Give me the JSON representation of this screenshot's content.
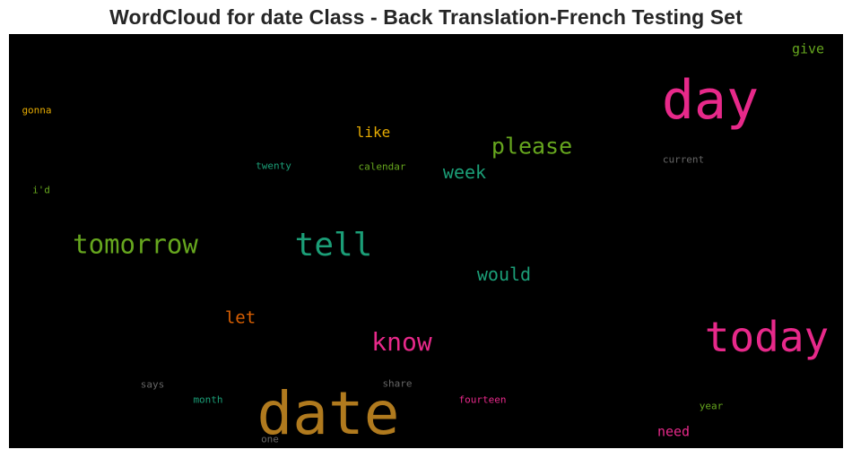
{
  "title": "WordCloud for date Class - Back Translation-French Testing Set",
  "chart_data": {
    "type": "wordcloud",
    "background": "#000000",
    "words": [
      {
        "text": "date",
        "color": "#b07a1e"
      },
      {
        "text": "day",
        "color": "#e7298a"
      },
      {
        "text": "today",
        "color": "#e7298a"
      },
      {
        "text": "tell",
        "color": "#1b9e77"
      },
      {
        "text": "tomorrow",
        "color": "#66a61e"
      },
      {
        "text": "know",
        "color": "#e7298a"
      },
      {
        "text": "please",
        "color": "#66a61e"
      },
      {
        "text": "week",
        "color": "#1b9e77"
      },
      {
        "text": "would",
        "color": "#1b9e77"
      },
      {
        "text": "let",
        "color": "#d95f02"
      },
      {
        "text": "like",
        "color": "#e6ab02"
      },
      {
        "text": "give",
        "color": "#66a61e"
      },
      {
        "text": "need",
        "color": "#e7298a"
      },
      {
        "text": "gonna",
        "color": "#e6ab02"
      },
      {
        "text": "twenty",
        "color": "#1b9e77"
      },
      {
        "text": "calendar",
        "color": "#66a61e"
      },
      {
        "text": "current",
        "color": "#666666"
      },
      {
        "text": "i'd",
        "color": "#66a61e"
      },
      {
        "text": "says",
        "color": "#666666"
      },
      {
        "text": "share",
        "color": "#666666"
      },
      {
        "text": "month",
        "color": "#1b9e77"
      },
      {
        "text": "fourteen",
        "color": "#e7298a"
      },
      {
        "text": "year",
        "color": "#66a61e"
      },
      {
        "text": "one",
        "color": "#666666"
      }
    ]
  }
}
